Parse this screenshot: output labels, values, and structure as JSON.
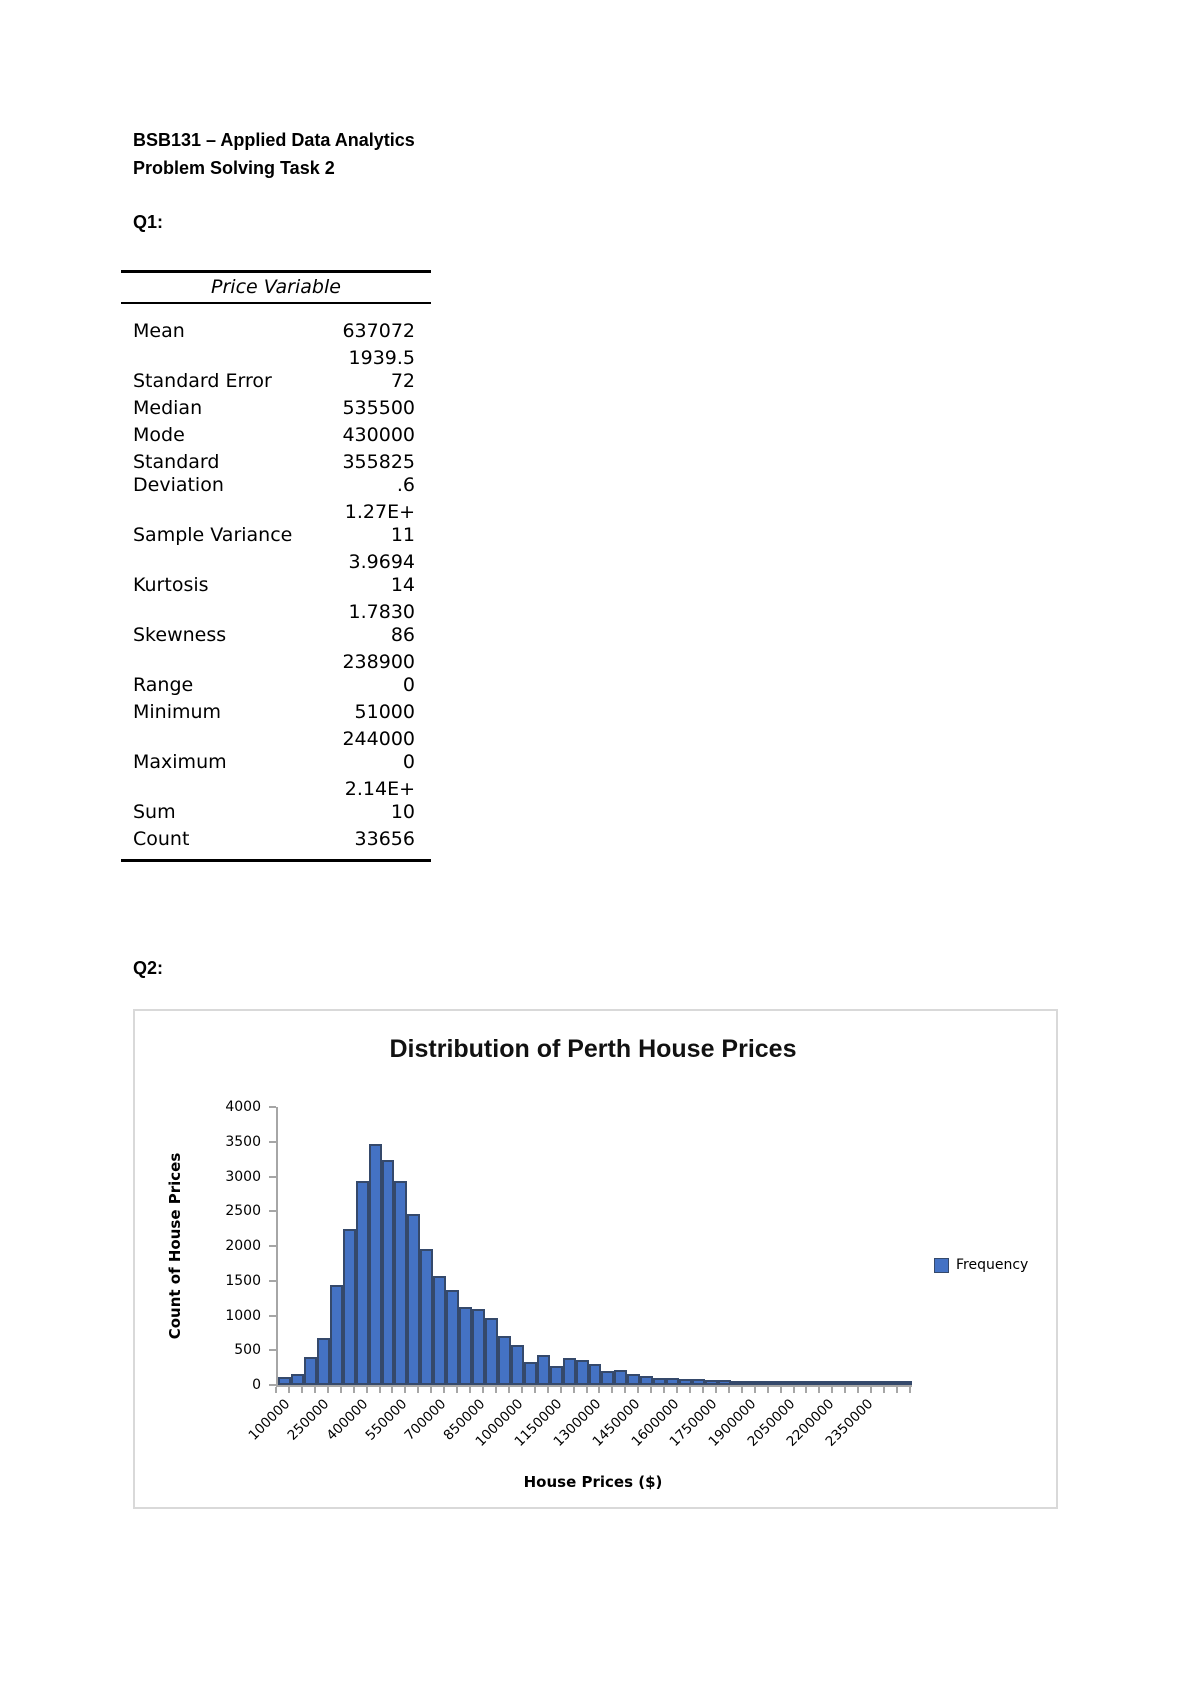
{
  "doc": {
    "course_line": "BSB131 – Applied Data Analytics",
    "task_line": "Problem Solving Task 2",
    "q1_label": "Q1:",
    "q2_label": "Q2:"
  },
  "stats_table": {
    "header": "Price Variable",
    "rows": [
      {
        "label": "Mean",
        "value": "637072"
      },
      {
        "label": "Standard Error",
        "value": "1939.5\n72"
      },
      {
        "label": "Median",
        "value": "535500"
      },
      {
        "label": "Mode",
        "value": "430000"
      },
      {
        "label": "Standard\nDeviation",
        "value": "355825\n.6"
      },
      {
        "label": "Sample Variance",
        "value": "1.27E+\n11"
      },
      {
        "label": "Kurtosis",
        "value": "3.9694\n14"
      },
      {
        "label": "Skewness",
        "value": "1.7830\n86"
      },
      {
        "label": "Range",
        "value": "238900\n0"
      },
      {
        "label": "Minimum",
        "value": "51000"
      },
      {
        "label": "Maximum",
        "value": "244000\n0"
      },
      {
        "label": "Sum",
        "value": "2.14E+\n10"
      },
      {
        "label": "Count",
        "value": "33656"
      }
    ]
  },
  "chart": {
    "title": "Distribution of Perth House Prices",
    "y_axis_title": "Count of House Prices",
    "x_axis_title": "House Prices ($)",
    "legend_label": "Frequency",
    "colors": {
      "bar_fill": "#4472C4",
      "bar_border": "#35496B",
      "axis": "#A6A6A6",
      "chart_border": "#D9D9D9"
    }
  },
  "chart_data": {
    "type": "bar",
    "title": "Distribution of Perth House Prices",
    "xlabel": "House Prices ($)",
    "ylabel": "Count of House Prices",
    "legend": [
      "Frequency"
    ],
    "legend_position": "right",
    "grid": false,
    "ylim": [
      0,
      4000
    ],
    "ytick_step": 500,
    "bin_width": 50000,
    "categories": [
      100000,
      150000,
      200000,
      250000,
      300000,
      350000,
      400000,
      450000,
      500000,
      550000,
      600000,
      650000,
      700000,
      750000,
      800000,
      850000,
      900000,
      950000,
      1000000,
      1050000,
      1100000,
      1150000,
      1200000,
      1250000,
      1300000,
      1350000,
      1400000,
      1450000,
      1500000,
      1550000,
      1600000,
      1650000,
      1700000,
      1750000,
      1800000,
      1850000,
      1900000,
      1950000,
      2000000,
      2050000,
      2100000,
      2150000,
      2200000,
      2250000,
      2300000,
      2350000,
      2400000,
      2450000,
      2500000
    ],
    "values": [
      110,
      165,
      405,
      680,
      1440,
      2250,
      2930,
      3470,
      3240,
      2940,
      2460,
      1950,
      1570,
      1360,
      1120,
      1100,
      965,
      700,
      570,
      325,
      435,
      280,
      395,
      355,
      300,
      195,
      215,
      155,
      135,
      95,
      105,
      85,
      80,
      70,
      65,
      60,
      55,
      50,
      45,
      45,
      40,
      40,
      35,
      35,
      30,
      30,
      25,
      20,
      20
    ],
    "x_tick_labels": [
      "100000",
      "250000",
      "400000",
      "550000",
      "700000",
      "850000",
      "1000000",
      "1150000",
      "1300000",
      "1450000",
      "1600000",
      "1750000",
      "1900000",
      "2050000",
      "2200000",
      "2350000"
    ],
    "x_tick_label_every_n_bins": 3,
    "x_tick_label_rotation_deg": 45
  }
}
